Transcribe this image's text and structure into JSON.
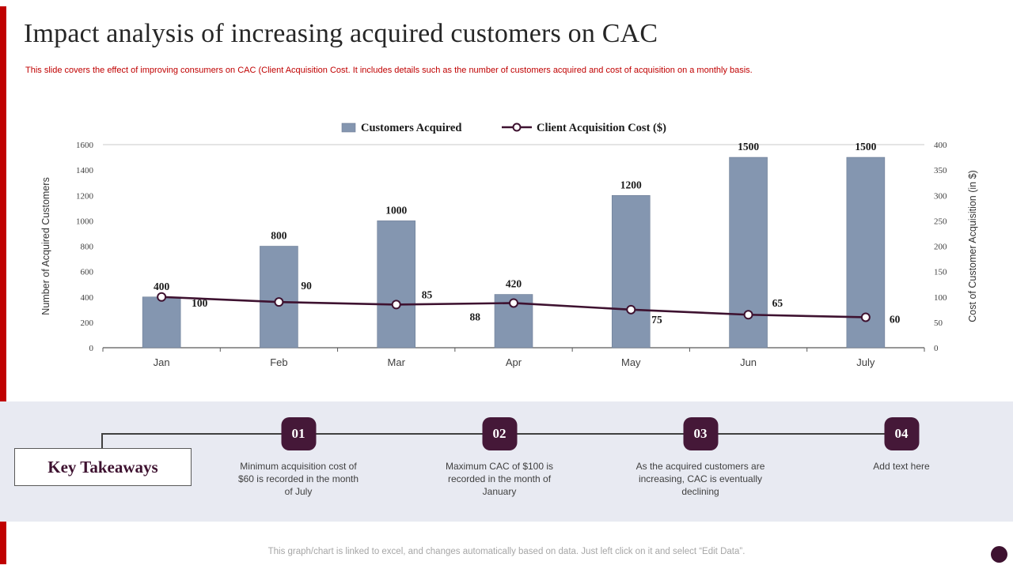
{
  "page": {
    "title": "Impact analysis of increasing acquired customers on CAC",
    "subtitle": "This slide covers the effect of improving consumers on CAC (Client Acquisition Cost. It includes details such as the number of customers acquired and cost of acquisition on a monthly basis.",
    "footer": "This graph/chart is linked to excel, and changes automatically based on data. Just left click on it and select “Edit Data”."
  },
  "chart_data": {
    "type": "combo",
    "categories": [
      "Jan",
      "Feb",
      "Mar",
      "Apr",
      "May",
      "Jun",
      "July"
    ],
    "series": [
      {
        "name": "Customers Acquired",
        "type": "bar",
        "axis": "left",
        "values": [
          400,
          800,
          1000,
          420,
          1200,
          1500,
          1500
        ],
        "color": "#8496B0"
      },
      {
        "name": "Client Acquisition Cost ($)",
        "type": "line",
        "axis": "right",
        "values": [
          100,
          90,
          85,
          88,
          75,
          65,
          60
        ],
        "color": "#3E1230"
      }
    ],
    "left_axis": {
      "label": "Number of Acquired Customers",
      "min": 0,
      "max": 1600,
      "step": 200
    },
    "right_axis": {
      "label": "Cost of Customer Acquisition (in $)",
      "min": 0,
      "max": 400,
      "step": 50
    },
    "legend_position": "top",
    "grid": "top-border-only"
  },
  "takeaways": {
    "heading": "Key Takeaways",
    "items": [
      {
        "number": "01",
        "text": "Minimum acquisition cost of $60 is recorded in the month of July"
      },
      {
        "number": "02",
        "text": "Maximum CAC of $100 is recorded in the month of January"
      },
      {
        "number": "03",
        "text": "As the acquired customers are increasing, CAC is eventually declining"
      },
      {
        "number": "04",
        "text": "Add text here"
      }
    ]
  },
  "colors": {
    "accent_red": "#C00000",
    "bar": "#8496B0",
    "line": "#3E1230",
    "badge": "#451838",
    "band": "#E8EAF2"
  }
}
